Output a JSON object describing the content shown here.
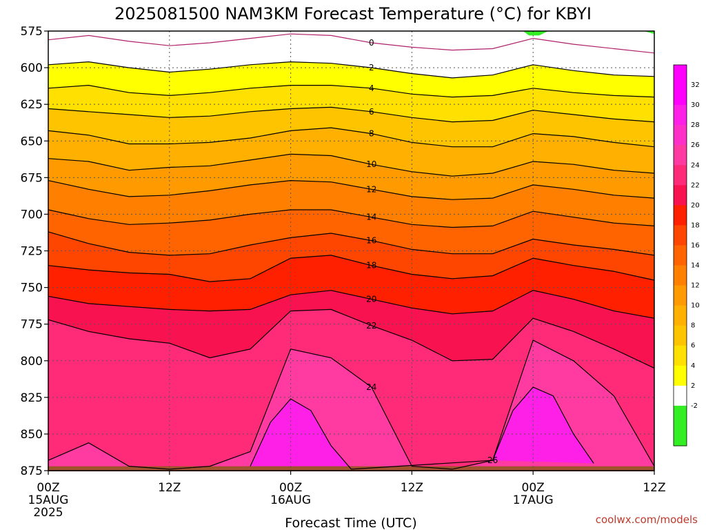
{
  "chart_data": {
    "type": "heatmap",
    "title": "2025081500 NAM3KM Forecast Temperature (°C) for KBYI",
    "xlabel": "Forecast Time (UTC)",
    "ylabel": "",
    "credit": "coolwx.com/models",
    "y_scale": "pressure (hPa), inverted",
    "ylim": [
      875,
      575
    ],
    "xlim_hours": [
      0,
      60
    ],
    "y_ticks": [
      575,
      600,
      625,
      650,
      675,
      700,
      725,
      750,
      775,
      800,
      825,
      850,
      875
    ],
    "x_ticks": [
      {
        "hour": 0,
        "label": "00Z",
        "sub": "15AUG",
        "sub2": "2025"
      },
      {
        "hour": 12,
        "label": "12Z",
        "sub": "",
        "sub2": ""
      },
      {
        "hour": 24,
        "label": "00Z",
        "sub": "16AUG",
        "sub2": ""
      },
      {
        "hour": 36,
        "label": "12Z",
        "sub": "",
        "sub2": ""
      },
      {
        "hour": 48,
        "label": "00Z",
        "sub": "17AUG",
        "sub2": ""
      },
      {
        "hour": 60,
        "label": "12Z",
        "sub": "",
        "sub2": ""
      }
    ],
    "grid": true,
    "colorbar": {
      "placement": "right",
      "bins": [
        {
          "min": -4,
          "max": -2,
          "color": "#33ee22"
        },
        {
          "min": -2,
          "max": 0,
          "color": "#33ee22"
        },
        {
          "min": 0,
          "max": 2,
          "color": "#ffffff"
        },
        {
          "min": 2,
          "max": 4,
          "color": "#ffff00"
        },
        {
          "min": 4,
          "max": 6,
          "color": "#ffe000"
        },
        {
          "min": 6,
          "max": 8,
          "color": "#ffc400"
        },
        {
          "min": 8,
          "max": 10,
          "color": "#ffb000"
        },
        {
          "min": 10,
          "max": 12,
          "color": "#ff9a00"
        },
        {
          "min": 12,
          "max": 14,
          "color": "#ff8000"
        },
        {
          "min": 14,
          "max": 16,
          "color": "#ff6400"
        },
        {
          "min": 16,
          "max": 18,
          "color": "#ff4600"
        },
        {
          "min": 18,
          "max": 20,
          "color": "#ff2000"
        },
        {
          "min": 20,
          "max": 22,
          "color": "#f81250"
        },
        {
          "min": 22,
          "max": 24,
          "color": "#ff2a78"
        },
        {
          "min": 24,
          "max": 26,
          "color": "#ff3aa0"
        },
        {
          "min": 26,
          "max": 28,
          "color": "#ff30c8"
        },
        {
          "min": 28,
          "max": 30,
          "color": "#ff20e8"
        },
        {
          "min": 30,
          "max": 32,
          "color": "#ff00ff"
        },
        {
          "min": 32,
          "max": 34,
          "color": "#ff00ff"
        }
      ],
      "tick_labels": [
        "32",
        "30",
        "28",
        "26",
        "24",
        "22",
        "20",
        "18",
        "16",
        "14",
        "12",
        "10",
        "8",
        "6",
        "4",
        "2",
        "-2"
      ]
    },
    "series": [
      {
        "name": "0",
        "values_hpa": [
          [
            0,
            581
          ],
          [
            4,
            578
          ],
          [
            8,
            582
          ],
          [
            12,
            585
          ],
          [
            16,
            583
          ],
          [
            20,
            580
          ],
          [
            24,
            577
          ],
          [
            28,
            578
          ],
          [
            32,
            583
          ],
          [
            36,
            586
          ],
          [
            40,
            588
          ],
          [
            44,
            587
          ],
          [
            48,
            580
          ],
          [
            52,
            584
          ],
          [
            56,
            587
          ],
          [
            60,
            590
          ]
        ]
      },
      {
        "name": "2",
        "values_hpa": [
          [
            0,
            598
          ],
          [
            4,
            596
          ],
          [
            8,
            600
          ],
          [
            12,
            603
          ],
          [
            16,
            601
          ],
          [
            20,
            598
          ],
          [
            24,
            596
          ],
          [
            28,
            597
          ],
          [
            32,
            600
          ],
          [
            36,
            604
          ],
          [
            40,
            607
          ],
          [
            44,
            605
          ],
          [
            48,
            598
          ],
          [
            52,
            602
          ],
          [
            56,
            605
          ],
          [
            60,
            606
          ]
        ]
      },
      {
        "name": "4",
        "values_hpa": [
          [
            0,
            614
          ],
          [
            4,
            612
          ],
          [
            8,
            617
          ],
          [
            12,
            619
          ],
          [
            16,
            617
          ],
          [
            20,
            614
          ],
          [
            24,
            612
          ],
          [
            28,
            612
          ],
          [
            32,
            614
          ],
          [
            36,
            618
          ],
          [
            40,
            620
          ],
          [
            44,
            619
          ],
          [
            48,
            614
          ],
          [
            52,
            617
          ],
          [
            56,
            619
          ],
          [
            60,
            620
          ]
        ]
      },
      {
        "name": "6",
        "values_hpa": [
          [
            0,
            628
          ],
          [
            4,
            630
          ],
          [
            8,
            632
          ],
          [
            12,
            634
          ],
          [
            16,
            633
          ],
          [
            20,
            630
          ],
          [
            24,
            628
          ],
          [
            28,
            627
          ],
          [
            32,
            630
          ],
          [
            36,
            634
          ],
          [
            40,
            637
          ],
          [
            44,
            636
          ],
          [
            48,
            629
          ],
          [
            52,
            632
          ],
          [
            56,
            635
          ],
          [
            60,
            637
          ]
        ]
      },
      {
        "name": "8",
        "values_hpa": [
          [
            0,
            643
          ],
          [
            4,
            646
          ],
          [
            8,
            652
          ],
          [
            12,
            652
          ],
          [
            16,
            651
          ],
          [
            20,
            648
          ],
          [
            24,
            643
          ],
          [
            28,
            641
          ],
          [
            32,
            645
          ],
          [
            36,
            651
          ],
          [
            40,
            654
          ],
          [
            44,
            654
          ],
          [
            48,
            645
          ],
          [
            52,
            647
          ],
          [
            56,
            651
          ],
          [
            60,
            654
          ]
        ]
      },
      {
        "name": "10",
        "values_hpa": [
          [
            0,
            662
          ],
          [
            4,
            664
          ],
          [
            8,
            670
          ],
          [
            12,
            668
          ],
          [
            16,
            667
          ],
          [
            20,
            663
          ],
          [
            24,
            659
          ],
          [
            28,
            660
          ],
          [
            32,
            666
          ],
          [
            36,
            671
          ],
          [
            40,
            674
          ],
          [
            44,
            672
          ],
          [
            48,
            664
          ],
          [
            52,
            666
          ],
          [
            56,
            670
          ],
          [
            60,
            672
          ]
        ]
      },
      {
        "name": "12",
        "values_hpa": [
          [
            0,
            677
          ],
          [
            4,
            683
          ],
          [
            8,
            688
          ],
          [
            12,
            687
          ],
          [
            16,
            684
          ],
          [
            20,
            680
          ],
          [
            24,
            677
          ],
          [
            28,
            678
          ],
          [
            32,
            683
          ],
          [
            36,
            688
          ],
          [
            40,
            690
          ],
          [
            44,
            689
          ],
          [
            48,
            680
          ],
          [
            52,
            683
          ],
          [
            56,
            687
          ],
          [
            60,
            689
          ]
        ]
      },
      {
        "name": "14",
        "values_hpa": [
          [
            0,
            697
          ],
          [
            4,
            703
          ],
          [
            8,
            707
          ],
          [
            12,
            706
          ],
          [
            16,
            704
          ],
          [
            20,
            700
          ],
          [
            24,
            697
          ],
          [
            28,
            697
          ],
          [
            32,
            702
          ],
          [
            36,
            707
          ],
          [
            40,
            709
          ],
          [
            44,
            708
          ],
          [
            48,
            698
          ],
          [
            52,
            702
          ],
          [
            56,
            706
          ],
          [
            60,
            708
          ]
        ]
      },
      {
        "name": "16",
        "values_hpa": [
          [
            0,
            712
          ],
          [
            4,
            720
          ],
          [
            8,
            726
          ],
          [
            12,
            728
          ],
          [
            16,
            727
          ],
          [
            20,
            721
          ],
          [
            24,
            716
          ],
          [
            28,
            713
          ],
          [
            32,
            718
          ],
          [
            36,
            724
          ],
          [
            40,
            727
          ],
          [
            44,
            727
          ],
          [
            48,
            717
          ],
          [
            52,
            721
          ],
          [
            56,
            724
          ],
          [
            60,
            728
          ]
        ]
      },
      {
        "name": "18",
        "values_hpa": [
          [
            0,
            735
          ],
          [
            4,
            738
          ],
          [
            8,
            740
          ],
          [
            12,
            741
          ],
          [
            16,
            746
          ],
          [
            20,
            744
          ],
          [
            24,
            730
          ],
          [
            28,
            728
          ],
          [
            32,
            735
          ],
          [
            36,
            741
          ],
          [
            40,
            744
          ],
          [
            44,
            742
          ],
          [
            48,
            730
          ],
          [
            52,
            735
          ],
          [
            56,
            739
          ],
          [
            60,
            745
          ]
        ]
      },
      {
        "name": "20",
        "values_hpa": [
          [
            0,
            756
          ],
          [
            4,
            761
          ],
          [
            8,
            763
          ],
          [
            12,
            765
          ],
          [
            16,
            766
          ],
          [
            20,
            765
          ],
          [
            24,
            755
          ],
          [
            28,
            752
          ],
          [
            32,
            758
          ],
          [
            36,
            764
          ],
          [
            40,
            768
          ],
          [
            44,
            766
          ],
          [
            48,
            752
          ],
          [
            52,
            758
          ],
          [
            56,
            766
          ],
          [
            60,
            771
          ]
        ]
      },
      {
        "name": "22",
        "values_hpa": [
          [
            0,
            772
          ],
          [
            4,
            780
          ],
          [
            8,
            785
          ],
          [
            12,
            788
          ],
          [
            16,
            798
          ],
          [
            20,
            792
          ],
          [
            24,
            766
          ],
          [
            28,
            765
          ],
          [
            32,
            776
          ],
          [
            36,
            786
          ],
          [
            40,
            800
          ],
          [
            44,
            799
          ],
          [
            48,
            771
          ],
          [
            52,
            780
          ],
          [
            56,
            792
          ],
          [
            60,
            805
          ]
        ]
      },
      {
        "name": "24",
        "values_hpa": [
          [
            0,
            868
          ],
          [
            4,
            856
          ],
          [
            8,
            872
          ],
          [
            12,
            874
          ],
          [
            16,
            872
          ],
          [
            20,
            862
          ],
          [
            24,
            792
          ],
          [
            28,
            798
          ],
          [
            32,
            818
          ],
          [
            36,
            872
          ],
          [
            40,
            874
          ],
          [
            44,
            868
          ],
          [
            48,
            786
          ],
          [
            52,
            800
          ],
          [
            56,
            824
          ],
          [
            60,
            872
          ]
        ]
      },
      {
        "name": "26",
        "values_hpa": [
          [
            20,
            872
          ],
          [
            22,
            842
          ],
          [
            24,
            826
          ],
          [
            26,
            834
          ],
          [
            28,
            858
          ],
          [
            30,
            874
          ],
          [
            44,
            868
          ],
          [
            46,
            834
          ],
          [
            48,
            818
          ],
          [
            50,
            824
          ],
          [
            52,
            850
          ],
          [
            54,
            870
          ]
        ]
      }
    ]
  }
}
